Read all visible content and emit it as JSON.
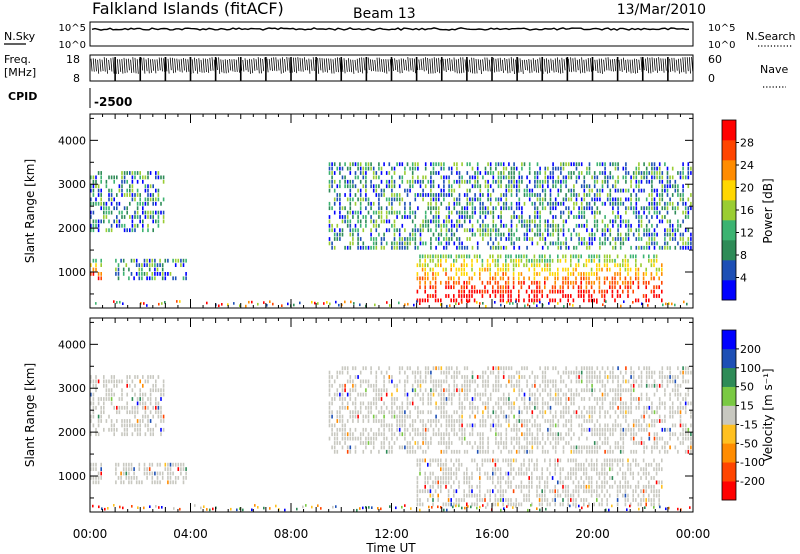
{
  "header": {
    "station": "Falkland Islands (fitACF)",
    "beam": "Beam 13",
    "date": "13/Mar/2010"
  },
  "panels": {
    "nsky": {
      "label": "N.Sky",
      "right_label": "N.Search",
      "ticks": [
        "10^5",
        "10^0"
      ]
    },
    "freq": {
      "label_line1": "Freq.",
      "label_line2": "[MHz]",
      "left_ticks": [
        "18",
        "8"
      ],
      "right_label": "Nave",
      "right_ticks": [
        "60",
        "0"
      ]
    },
    "cpid": {
      "label": "CPID",
      "value": "-2500"
    }
  },
  "chart_data": [
    {
      "type": "heatmap",
      "quantity": "Power",
      "ylabel": "Slant Range [km]",
      "xlabel": "Time UT",
      "ylim": [
        180,
        4600
      ],
      "yticks": [
        "1000",
        "2000",
        "3000",
        "4000"
      ],
      "xticks": [
        "00:00",
        "04:00",
        "08:00",
        "12:00",
        "16:00",
        "20:00",
        "00:00"
      ],
      "colorbar": {
        "label": "Power [dB]",
        "ticks": [
          "28",
          "24",
          "20",
          "16",
          "12",
          "8",
          "4"
        ],
        "colors": [
          "#0000ff",
          "#1d4fb5",
          "#2e8b57",
          "#3cb371",
          "#9acd32",
          "#ffd700",
          "#ff8c00",
          "#ff4500",
          "#ff0000"
        ]
      },
      "echo_regions": [
        {
          "t_start": 0.0,
          "t_end": 0.5,
          "r_min": 800,
          "r_max": 1300,
          "level": "high"
        },
        {
          "t_start": 0.0,
          "t_end": 3.0,
          "r_min": 1900,
          "r_max": 3300,
          "level": "low"
        },
        {
          "t_start": 1.0,
          "t_end": 3.8,
          "r_min": 800,
          "r_max": 1300,
          "level": "low"
        },
        {
          "t_start": 9.5,
          "t_end": 23.9,
          "r_min": 1500,
          "r_max": 3500,
          "level": "low"
        },
        {
          "t_start": 13.0,
          "t_end": 22.8,
          "r_min": 300,
          "r_max": 1400,
          "level": "high"
        }
      ]
    },
    {
      "type": "heatmap",
      "quantity": "Velocity",
      "ylabel": "Slant Range [km]",
      "xlabel": "Time UT",
      "ylim": [
        180,
        4600
      ],
      "yticks": [
        "1000",
        "2000",
        "3000",
        "4000"
      ],
      "xticks": [
        "00:00",
        "04:00",
        "08:00",
        "12:00",
        "16:00",
        "20:00",
        "00:00"
      ],
      "colorbar": {
        "label": "Velocity [m s⁻¹]",
        "ticks": [
          "200",
          "100",
          "50",
          "15",
          "-15",
          "-50",
          "-100",
          "-200"
        ],
        "colors": [
          "#ff0000",
          "#ff4500",
          "#ff8c00",
          "#ffc020",
          "#c8c8c0",
          "#7ac943",
          "#2e8b57",
          "#1d4fb5",
          "#0000ff"
        ]
      }
    }
  ]
}
